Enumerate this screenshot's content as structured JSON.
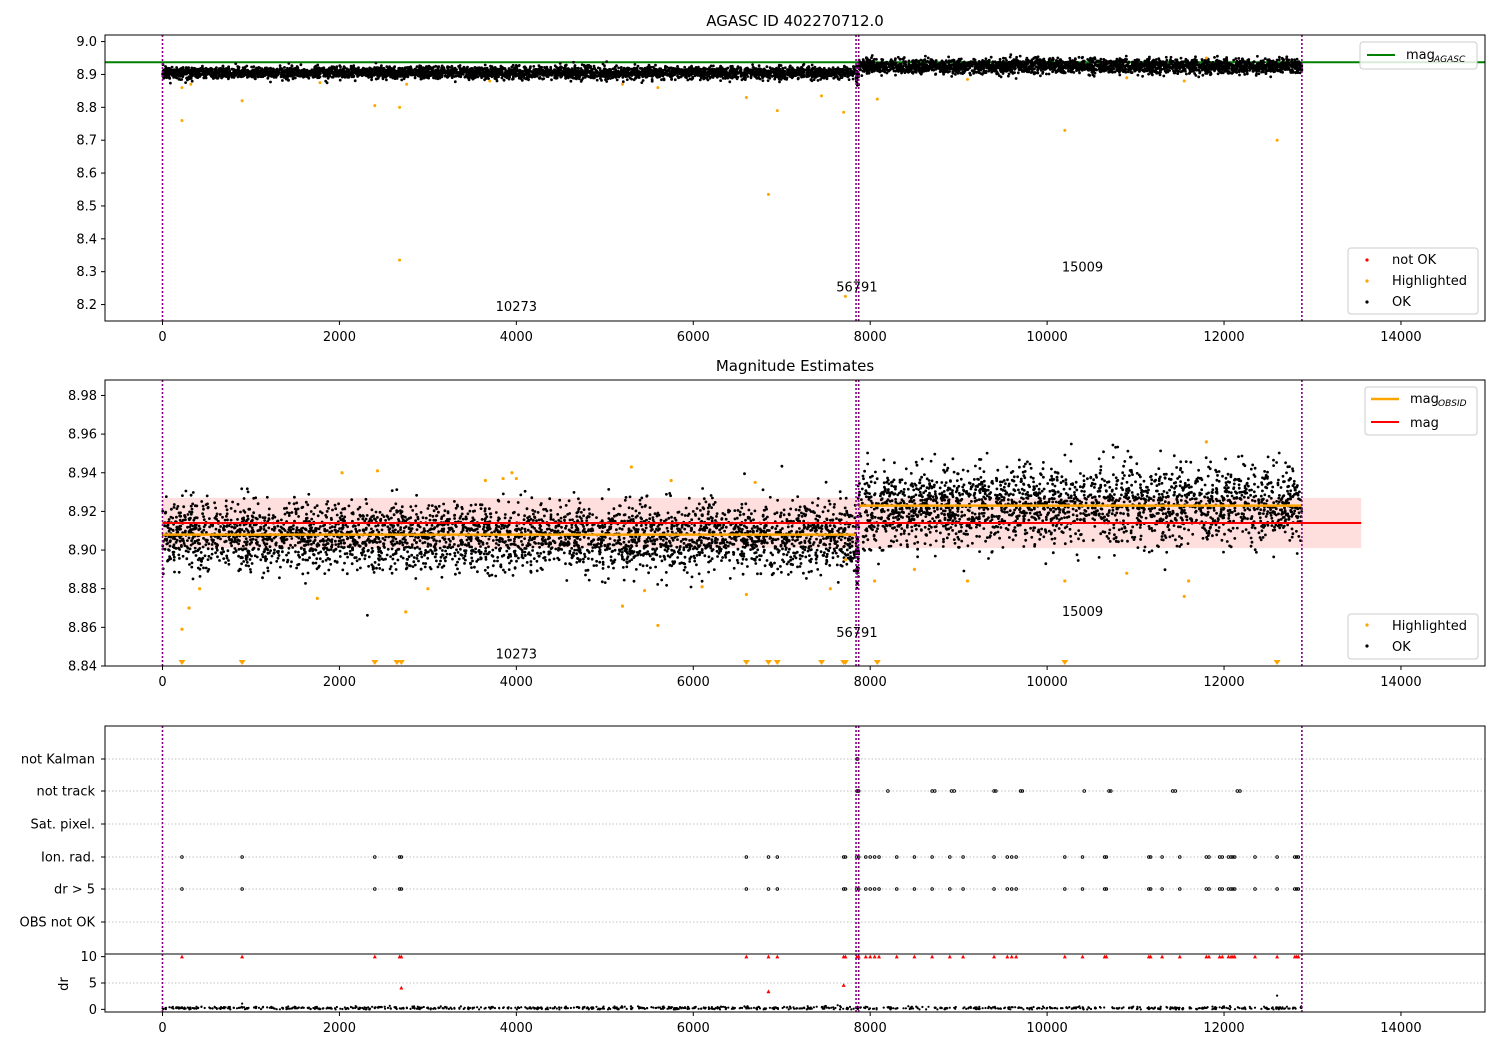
{
  "figure": {
    "background": "#ffffff"
  },
  "colors": {
    "ok": "#000000",
    "highlighted": "#ffa500",
    "not_ok": "#ff0000",
    "agasc_line": "#008000",
    "obsid_line": "#ffa500",
    "mag_line": "#ff0000",
    "mag_band": "#ffdede",
    "obs_boundary": "#800080",
    "grid": "#b0b0b0"
  },
  "chart_data": [
    {
      "type": "scatter",
      "title": "AGASC ID 402270712.0",
      "xlim": [
        -650,
        14950
      ],
      "ylim": [
        8.15,
        9.02
      ],
      "xticks": [
        0,
        2000,
        4000,
        6000,
        8000,
        10000,
        12000,
        14000
      ],
      "yticks": [
        8.2,
        8.3,
        8.4,
        8.5,
        8.6,
        8.7,
        8.8,
        8.9,
        9.0
      ],
      "ytick_labels": [
        "8.2",
        "8.3",
        "8.4",
        "8.5",
        "8.6",
        "8.7",
        "8.8",
        "8.9",
        "9.0"
      ],
      "xtick_labels": [
        "0",
        "2000",
        "4000",
        "6000",
        "8000",
        "10000",
        "12000",
        "14000"
      ],
      "hlines": [
        {
          "name": "mag_AGASC",
          "y": 8.937,
          "color": "#008000",
          "x": [
            -650,
            14950
          ]
        }
      ],
      "obs_boundaries": [
        0,
        7840,
        7870,
        12880
      ],
      "observations": [
        {
          "obsid": "10273",
          "x_range": [
            0,
            7840
          ],
          "mean": 8.905,
          "spread": 0.009
        },
        {
          "obsid": "56791",
          "x_range": [
            7840,
            7870
          ],
          "mean": 8.895,
          "spread": 0.012
        },
        {
          "obsid": "15009",
          "x_range": [
            7870,
            12880
          ],
          "mean": 8.925,
          "spread": 0.011
        }
      ],
      "obs_labels": [
        {
          "text": "10273",
          "x": 4000,
          "y": 8.18
        },
        {
          "text": "56791",
          "x": 7850,
          "y": 8.24
        },
        {
          "text": "15009",
          "x": 10400,
          "y": 8.3
        }
      ],
      "highlighted_points": [
        [
          220,
          8.76
        ],
        [
          220,
          8.86
        ],
        [
          320,
          8.87
        ],
        [
          900,
          8.82
        ],
        [
          1780,
          8.875
        ],
        [
          2400,
          8.805
        ],
        [
          2680,
          8.8
        ],
        [
          2680,
          8.335
        ],
        [
          2760,
          8.87
        ],
        [
          3700,
          8.88
        ],
        [
          5200,
          8.87
        ],
        [
          5600,
          8.86
        ],
        [
          6600,
          8.83
        ],
        [
          6850,
          8.535
        ],
        [
          6950,
          8.79
        ],
        [
          7450,
          8.835
        ],
        [
          7700,
          8.785
        ],
        [
          7720,
          8.225
        ],
        [
          8080,
          8.825
        ],
        [
          9100,
          8.885
        ],
        [
          10200,
          8.73
        ],
        [
          10900,
          8.89
        ],
        [
          11550,
          8.88
        ],
        [
          11800,
          8.95
        ],
        [
          12600,
          8.7
        ]
      ],
      "legends": [
        {
          "position": "top-right",
          "entries": [
            {
              "label": "mag",
              "subscript": "AGASC",
              "kind": "line",
              "color": "#008000"
            }
          ]
        },
        {
          "position": "lower-right",
          "entries": [
            {
              "label": "not OK",
              "kind": "dot",
              "color": "#ff0000"
            },
            {
              "label": "Highlighted",
              "kind": "dot",
              "color": "#ffa500"
            },
            {
              "label": "OK",
              "kind": "dot",
              "color": "#000000"
            }
          ]
        }
      ]
    },
    {
      "type": "scatter",
      "title": "Magnitude Estimates",
      "xlim": [
        -650,
        14950
      ],
      "ylim": [
        8.84,
        8.988
      ],
      "xticks": [
        0,
        2000,
        4000,
        6000,
        8000,
        10000,
        12000,
        14000
      ],
      "yticks": [
        8.84,
        8.86,
        8.88,
        8.9,
        8.92,
        8.94,
        8.96,
        8.98
      ],
      "ytick_labels": [
        "8.84",
        "8.86",
        "8.88",
        "8.90",
        "8.92",
        "8.94",
        "8.96",
        "8.98"
      ],
      "xtick_labels": [
        "0",
        "2000",
        "4000",
        "6000",
        "8000",
        "10000",
        "12000",
        "14000"
      ],
      "mag": 8.914,
      "mag_band": [
        8.901,
        8.927
      ],
      "mag_band_x": [
        0,
        13550
      ],
      "obsid_mags": [
        {
          "x": [
            0,
            7840
          ],
          "y": 8.908
        },
        {
          "x": [
            7870,
            12880
          ],
          "y": 8.923
        }
      ],
      "obs_boundaries": [
        0,
        7840,
        7870,
        12880
      ],
      "observations": [
        {
          "obsid": "10273",
          "x_range": [
            0,
            7840
          ],
          "mean": 8.907,
          "spread": 0.0085
        },
        {
          "obsid": "56791",
          "x_range": [
            7840,
            7870
          ],
          "mean": 8.897,
          "spread": 0.013
        },
        {
          "obsid": "15009",
          "x_range": [
            7870,
            12880
          ],
          "mean": 8.923,
          "spread": 0.01
        }
      ],
      "obs_labels": [
        {
          "text": "10273",
          "x": 4000,
          "y": 8.844
        },
        {
          "text": "56791",
          "x": 7850,
          "y": 8.855
        },
        {
          "text": "15009",
          "x": 10400,
          "y": 8.866
        }
      ],
      "highlighted_points": [
        [
          220,
          8.859
        ],
        [
          300,
          8.87
        ],
        [
          420,
          8.88
        ],
        [
          1750,
          8.875
        ],
        [
          2030,
          8.94
        ],
        [
          2430,
          8.941
        ],
        [
          2750,
          8.868
        ],
        [
          3000,
          8.88
        ],
        [
          3650,
          8.936
        ],
        [
          3850,
          8.937
        ],
        [
          3950,
          8.94
        ],
        [
          4000,
          8.937
        ],
        [
          5200,
          8.871
        ],
        [
          5300,
          8.943
        ],
        [
          5450,
          8.879
        ],
        [
          5600,
          8.861
        ],
        [
          5750,
          8.936
        ],
        [
          6100,
          8.881
        ],
        [
          6600,
          8.877
        ],
        [
          6700,
          8.935
        ],
        [
          7550,
          8.88
        ],
        [
          7720,
          8.895
        ],
        [
          8050,
          8.884
        ],
        [
          8500,
          8.89
        ],
        [
          9100,
          8.884
        ],
        [
          10200,
          8.884
        ],
        [
          10900,
          8.888
        ],
        [
          11550,
          8.876
        ],
        [
          11600,
          8.884
        ],
        [
          11800,
          8.956
        ]
      ],
      "below_range_markers": [
        220,
        900,
        2400,
        2650,
        2700,
        6600,
        6850,
        6950,
        7450,
        7700,
        7720,
        8080,
        10200,
        12600
      ],
      "legends": [
        {
          "position": "top-right",
          "entries": [
            {
              "label": "mag",
              "subscript": "OBSID",
              "kind": "line",
              "color": "#ffa500"
            },
            {
              "label": "mag",
              "subscript": "",
              "kind": "line",
              "color": "#ff0000"
            }
          ]
        },
        {
          "position": "lower-right",
          "entries": [
            {
              "label": "Highlighted",
              "kind": "dot",
              "color": "#ffa500"
            },
            {
              "label": "OK",
              "kind": "dot",
              "color": "#000000"
            }
          ]
        }
      ]
    },
    {
      "type": "scatter",
      "title": "",
      "xlim": [
        -650,
        14950
      ],
      "categories": [
        "not Kalman",
        "not track",
        "Sat. pixel.",
        "Ion. rad.",
        "dr > 5",
        "OBS not OK"
      ],
      "flags": {
        "not Kalman": [
          7850,
          7860
        ],
        "not track": [
          7850,
          7860,
          7870,
          8200,
          8700,
          8730,
          8920,
          8950,
          9400,
          9420,
          9700,
          9720,
          10420,
          10700,
          10720,
          11420,
          11450,
          12150,
          12180
        ],
        "Sat. pixel.": [],
        "Ion. rad.": [
          220,
          900,
          2400,
          2680,
          2700,
          6600,
          6850,
          6950,
          7700,
          7720,
          7850,
          7870,
          7950,
          8000,
          8050,
          8100,
          8300,
          8500,
          8700,
          8900,
          9050,
          9400,
          9550,
          9600,
          9650,
          10200,
          10400,
          10650,
          10670,
          11150,
          11170,
          11300,
          11500,
          11800,
          11830,
          11950,
          11980,
          12050,
          12080,
          12100,
          12120,
          12350,
          12600,
          12800,
          12820,
          12840
        ],
        "dr > 5": [
          220,
          900,
          2400,
          2680,
          2700,
          6600,
          6850,
          6950,
          7700,
          7720,
          7850,
          7870,
          7950,
          8000,
          8050,
          8100,
          8300,
          8500,
          8700,
          8900,
          9050,
          9400,
          9550,
          9600,
          9650,
          10200,
          10400,
          10650,
          10670,
          11150,
          11170,
          11300,
          11500,
          11800,
          11830,
          11950,
          11980,
          12050,
          12080,
          12100,
          12120,
          12350,
          12600,
          12800,
          12820,
          12840
        ],
        "OBS not OK": []
      },
      "obs_boundaries": [
        0,
        7840,
        7870,
        12880
      ]
    },
    {
      "type": "scatter",
      "title": "",
      "ylabel": "dr",
      "xlim": [
        -650,
        14950
      ],
      "ylim": [
        -0.5,
        10.5
      ],
      "xticks": [
        0,
        2000,
        4000,
        6000,
        8000,
        10000,
        12000,
        14000
      ],
      "xtick_labels": [
        "0",
        "2000",
        "4000",
        "6000",
        "8000",
        "10000",
        "12000",
        "14000"
      ],
      "yticks": [
        0,
        5,
        10
      ],
      "ytick_labels": [
        "0",
        "5",
        "10"
      ],
      "not_ok_points": [
        [
          220,
          10
        ],
        [
          900,
          10
        ],
        [
          2400,
          10
        ],
        [
          2680,
          10
        ],
        [
          2700,
          10
        ],
        [
          2700,
          4.1
        ],
        [
          6600,
          10
        ],
        [
          6850,
          10
        ],
        [
          6850,
          3.4
        ],
        [
          6950,
          10
        ],
        [
          7700,
          10
        ],
        [
          7720,
          10
        ],
        [
          7700,
          4.6
        ],
        [
          7850,
          10
        ],
        [
          7870,
          10
        ],
        [
          7950,
          10
        ],
        [
          8000,
          10
        ],
        [
          8050,
          10
        ],
        [
          8100,
          10
        ],
        [
          8300,
          10
        ],
        [
          8500,
          10
        ],
        [
          8700,
          10
        ],
        [
          8900,
          10
        ],
        [
          9050,
          10
        ],
        [
          9400,
          10
        ],
        [
          9550,
          10
        ],
        [
          9600,
          10
        ],
        [
          9650,
          10
        ],
        [
          10200,
          10
        ],
        [
          10400,
          10
        ],
        [
          10650,
          10
        ],
        [
          10670,
          10
        ],
        [
          11150,
          10
        ],
        [
          11170,
          10
        ],
        [
          11300,
          10
        ],
        [
          11500,
          10
        ],
        [
          11800,
          10
        ],
        [
          11830,
          10
        ],
        [
          11950,
          10
        ],
        [
          11980,
          10
        ],
        [
          12050,
          10
        ],
        [
          12080,
          10
        ],
        [
          12100,
          10
        ],
        [
          12120,
          10
        ],
        [
          12350,
          10
        ],
        [
          12600,
          10
        ],
        [
          12800,
          10
        ],
        [
          12820,
          10
        ],
        [
          12840,
          10
        ]
      ],
      "ok_outliers": [
        [
          900,
          1.1
        ],
        [
          12600,
          2.6
        ]
      ],
      "ok_baseline": {
        "x": [
          0,
          12880
        ],
        "mean": 0.25,
        "spread": 0.15
      },
      "obs_boundaries": [
        0,
        7840,
        7870,
        12880
      ]
    }
  ]
}
